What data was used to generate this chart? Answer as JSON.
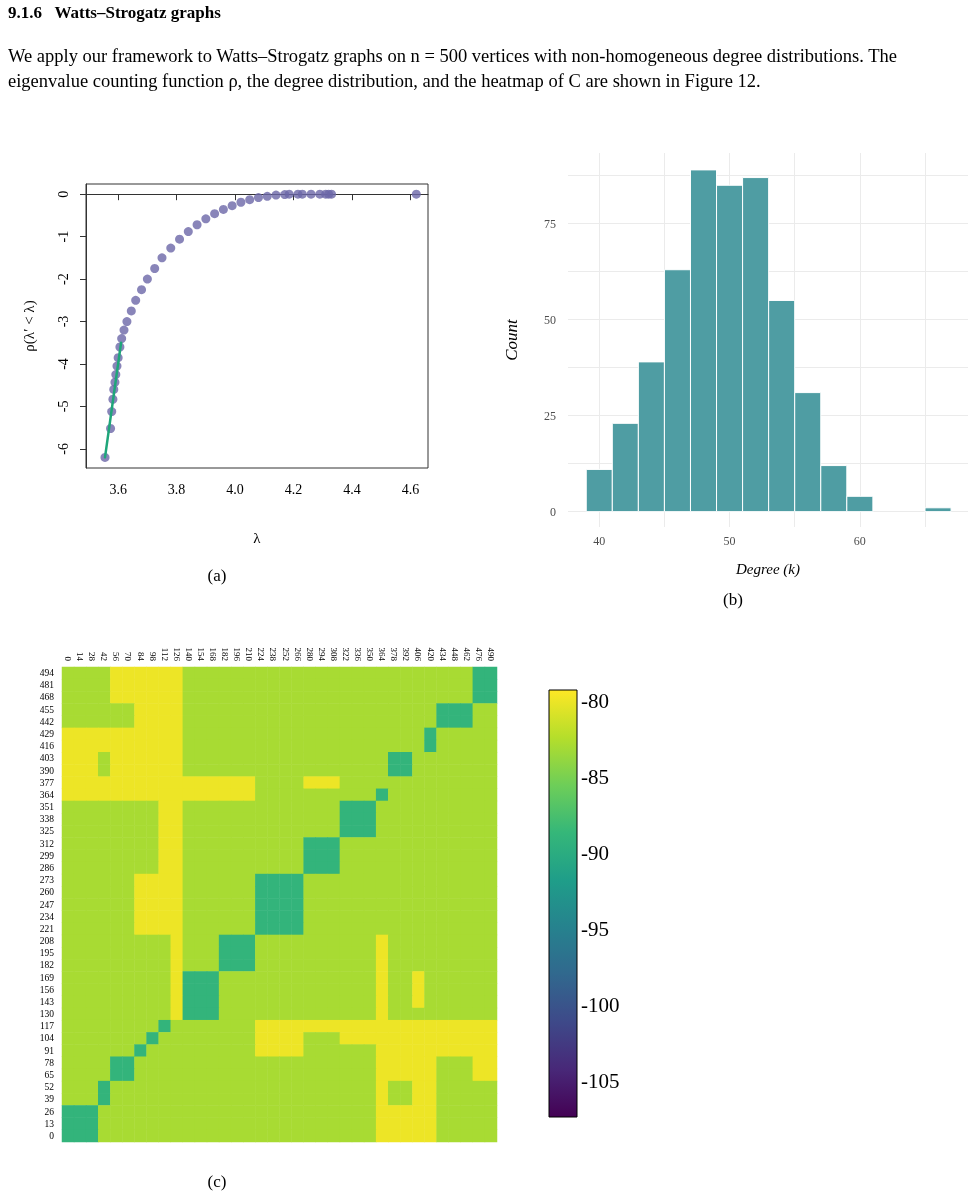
{
  "chart_data": [
    {
      "type": "scatter",
      "annotations": [
        "9.1.6   Watts–Strogatz graphs",
        "We apply our framework to Watts–Strogatz graphs on n = 500 vertices with non-homogeneous degree distributions. The eigenvalue counting function ρ, the degree distribution, and the heatmap of C are shown in Figure 12.",
        "(a)"
      ],
      "xlabel": "λ",
      "ylabel": "ρ(λ′ < λ)",
      "xlim": [
        3.49,
        4.66
      ],
      "ylim": [
        -6.45,
        0.24
      ],
      "xticks": [
        3.6,
        3.8,
        {
          "value": 4,
          "label": "4.0"
        },
        4.2,
        4.4,
        4.6
      ],
      "yticks": [
        0,
        -1,
        -2,
        -3,
        -4,
        -5,
        -6
      ],
      "marker": "circle",
      "series": [
        {
          "type": "scatter",
          "color": "#6b66a8",
          "x": [
            3.555,
            3.574,
            3.578,
            3.582,
            3.585,
            3.589,
            3.592,
            3.596,
            3.6,
            3.606,
            3.612,
            3.62,
            3.63,
            3.645,
            3.66,
            3.68,
            3.7,
            3.725,
            3.75,
            3.78,
            3.81,
            3.84,
            3.87,
            3.9,
            3.93,
            3.96,
            3.99,
            4.02,
            4.05,
            4.08,
            4.11,
            4.14,
            4.17,
            4.185,
            4.215,
            4.23,
            4.26,
            4.29,
            4.31,
            4.32,
            4.33,
            4.62
          ],
          "values": [
            -6.2,
            -5.52,
            -5.12,
            -4.83,
            -4.6,
            -4.43,
            -4.25,
            -4.05,
            -3.85,
            -3.6,
            -3.4,
            -3.2,
            -3.0,
            -2.75,
            -2.5,
            -2.25,
            -2.0,
            -1.75,
            -1.5,
            -1.27,
            -1.06,
            -0.88,
            -0.72,
            -0.58,
            -0.46,
            -0.36,
            -0.27,
            -0.19,
            -0.13,
            -0.08,
            -0.05,
            -0.02,
            -0.01,
            0,
            0,
            0,
            0,
            0,
            0,
            0,
            0,
            0
          ]
        },
        {
          "type": "line",
          "color": "#1fa67a",
          "marker": "none",
          "x": [
            3.555,
            3.61
          ],
          "values": [
            -6.2,
            -3.5
          ]
        }
      ]
    },
    {
      "type": "histogram",
      "annotations": [
        "(b)"
      ],
      "xlabel": "Degree (k)",
      "ylabel": "Count",
      "color": "#4f9da3",
      "bins": [
        39,
        41,
        43,
        45,
        47,
        49,
        51,
        53,
        55,
        57,
        59,
        61,
        63,
        65,
        67
      ],
      "values": [
        11,
        23,
        39,
        63,
        89,
        85,
        87,
        55,
        31,
        12,
        4,
        0,
        0,
        1
      ],
      "xlim": [
        37.6,
        68.3
      ],
      "ylim": [
        -4,
        93.4
      ],
      "xticks": [
        40,
        {
          "value": 45,
          "label": null
        },
        50,
        {
          "value": 55,
          "label": null
        },
        60,
        {
          "value": 65,
          "label": null
        }
      ],
      "yticks": [
        0,
        {
          "value": 12.5,
          "label": null
        },
        25,
        {
          "value": 37.5,
          "label": null
        },
        50,
        {
          "value": 62.5,
          "label": null
        },
        75,
        {
          "value": 87.5,
          "label": null
        }
      ],
      "grid": true
    },
    {
      "type": "heatmap",
      "annotations": [
        "(c)"
      ],
      "categories": [
        "0",
        "14",
        "28",
        "42",
        "56",
        "70",
        "84",
        "98",
        "112",
        "126",
        "140",
        "154",
        "168",
        "182",
        "196",
        "210",
        "224",
        "238",
        "252",
        "266",
        "280",
        "294",
        "308",
        "322",
        "336",
        "350",
        "364",
        "378",
        "392",
        "406",
        "420",
        "434",
        "448",
        "462",
        "476",
        "490"
      ],
      "y_categories": [
        "494",
        "481",
        "468",
        "455",
        "442",
        "429",
        "416",
        "403",
        "390",
        "377",
        "364",
        "351",
        "338",
        "325",
        "312",
        "299",
        "286",
        "273",
        "260",
        "247",
        "234",
        "221",
        "208",
        "195",
        "182",
        "169",
        "156",
        "143",
        "130",
        "117",
        "104",
        "91",
        "78",
        "65",
        "52",
        "39",
        "26",
        "13",
        "0"
      ],
      "clim": [
        -107.4,
        -79.3
      ],
      "cticks": [
        -80,
        -85,
        -90,
        -95,
        -100,
        -105
      ],
      "cells": [
        [
          -83,
          -83,
          -83,
          -83,
          -80,
          -80,
          -80,
          -80,
          -80,
          -80,
          -83,
          -83,
          -83,
          -83,
          -83,
          -83,
          -83,
          -83,
          -83,
          -83,
          -83,
          -83,
          -83,
          -83,
          -83,
          -83,
          -83,
          -83,
          -83,
          -83,
          -83,
          -83,
          -83,
          -83,
          -89,
          -89
        ],
        [
          -83,
          -83,
          -83,
          -83,
          -80,
          -80,
          -80,
          -80,
          -80,
          -80,
          -83,
          -83,
          -83,
          -83,
          -83,
          -83,
          -83,
          -83,
          -83,
          -83,
          -83,
          -83,
          -83,
          -83,
          -83,
          -83,
          -83,
          -83,
          -83,
          -83,
          -83,
          -83,
          -83,
          -83,
          -89,
          -89
        ],
        [
          -83,
          -83,
          -83,
          -83,
          -80,
          -80,
          -80,
          -80,
          -80,
          -80,
          -83,
          -83,
          -83,
          -83,
          -83,
          -83,
          -83,
          -83,
          -83,
          -83,
          -83,
          -83,
          -83,
          -83,
          -83,
          -83,
          -83,
          -83,
          -83,
          -83,
          -83,
          -83,
          -83,
          -83,
          -89,
          -89
        ],
        [
          -83,
          -83,
          -83,
          -83,
          -83,
          -83,
          -80,
          -80,
          -80,
          -80,
          -83,
          -83,
          -83,
          -83,
          -83,
          -83,
          -83,
          -83,
          -83,
          -83,
          -83,
          -83,
          -83,
          -83,
          -83,
          -83,
          -83,
          -83,
          -83,
          -83,
          -83,
          -89,
          -89,
          -89,
          -83,
          -83
        ],
        [
          -83,
          -83,
          -83,
          -83,
          -83,
          -83,
          -80,
          -80,
          -80,
          -80,
          -83,
          -83,
          -83,
          -83,
          -83,
          -83,
          -83,
          -83,
          -83,
          -83,
          -83,
          -83,
          -83,
          -83,
          -83,
          -83,
          -83,
          -83,
          -83,
          -83,
          -83,
          -89,
          -89,
          -89,
          -83,
          -83
        ],
        [
          -80,
          -80,
          -80,
          -80,
          -80,
          -80,
          -80,
          -80,
          -80,
          -80,
          -83,
          -83,
          -83,
          -83,
          -83,
          -83,
          -83,
          -83,
          -83,
          -83,
          -83,
          -83,
          -83,
          -83,
          -83,
          -83,
          -83,
          -83,
          -83,
          -83,
          -89,
          -83,
          -83,
          -83,
          -83,
          -83
        ],
        [
          -80,
          -80,
          -80,
          -80,
          -80,
          -80,
          -80,
          -80,
          -80,
          -80,
          -83,
          -83,
          -83,
          -83,
          -83,
          -83,
          -83,
          -83,
          -83,
          -83,
          -83,
          -83,
          -83,
          -83,
          -83,
          -83,
          -83,
          -83,
          -83,
          -83,
          -89,
          -83,
          -83,
          -83,
          -83,
          -83
        ],
        [
          -80,
          -80,
          -80,
          -83,
          -80,
          -80,
          -80,
          -80,
          -80,
          -80,
          -83,
          -83,
          -83,
          -83,
          -83,
          -83,
          -83,
          -83,
          -83,
          -83,
          -83,
          -83,
          -83,
          -83,
          -83,
          -83,
          -83,
          -89,
          -89,
          -83,
          -83,
          -83,
          -83,
          -83,
          -83,
          -83
        ],
        [
          -80,
          -80,
          -80,
          -83,
          -80,
          -80,
          -80,
          -80,
          -80,
          -80,
          -83,
          -83,
          -83,
          -83,
          -83,
          -83,
          -83,
          -83,
          -83,
          -83,
          -83,
          -83,
          -83,
          -83,
          -83,
          -83,
          -83,
          -89,
          -89,
          -83,
          -83,
          -83,
          -83,
          -83,
          -83,
          -83
        ],
        [
          -80,
          -80,
          -80,
          -80,
          -80,
          -80,
          -80,
          -80,
          -80,
          -80,
          -80,
          -80,
          -80,
          -80,
          -80,
          -80,
          -83,
          -83,
          -83,
          -83,
          -80,
          -80,
          -80,
          -83,
          -83,
          -83,
          -83,
          -83,
          -83,
          -83,
          -83,
          -83,
          -83,
          -83,
          -83,
          -83
        ],
        [
          -80,
          -80,
          -80,
          -80,
          -80,
          -80,
          -80,
          -80,
          -80,
          -80,
          -80,
          -80,
          -80,
          -80,
          -80,
          -80,
          -83,
          -83,
          -83,
          -83,
          -83,
          -83,
          -83,
          -83,
          -83,
          -83,
          -89,
          -83,
          -83,
          -83,
          -83,
          -83,
          -83,
          -83,
          -83,
          -83
        ],
        [
          -83,
          -83,
          -83,
          -83,
          -83,
          -83,
          -83,
          -83,
          -80,
          -80,
          -83,
          -83,
          -83,
          -83,
          -83,
          -83,
          -83,
          -83,
          -83,
          -83,
          -83,
          -83,
          -83,
          -89,
          -89,
          -89,
          -83,
          -83,
          -83,
          -83,
          -83,
          -83,
          -83,
          -83,
          -83,
          -83
        ],
        [
          -83,
          -83,
          -83,
          -83,
          -83,
          -83,
          -83,
          -83,
          -80,
          -80,
          -83,
          -83,
          -83,
          -83,
          -83,
          -83,
          -83,
          -83,
          -83,
          -83,
          -83,
          -83,
          -83,
          -89,
          -89,
          -89,
          -83,
          -83,
          -83,
          -83,
          -83,
          -83,
          -83,
          -83,
          -83,
          -83
        ],
        [
          -83,
          -83,
          -83,
          -83,
          -83,
          -83,
          -83,
          -83,
          -80,
          -80,
          -83,
          -83,
          -83,
          -83,
          -83,
          -83,
          -83,
          -83,
          -83,
          -83,
          -83,
          -83,
          -83,
          -89,
          -89,
          -89,
          -83,
          -83,
          -83,
          -83,
          -83,
          -83,
          -83,
          -83,
          -83,
          -83
        ],
        [
          -83,
          -83,
          -83,
          -83,
          -83,
          -83,
          -83,
          -83,
          -80,
          -80,
          -83,
          -83,
          -83,
          -83,
          -83,
          -83,
          -83,
          -83,
          -83,
          -83,
          -89,
          -89,
          -89,
          -83,
          -83,
          -83,
          -83,
          -83,
          -83,
          -83,
          -83,
          -83,
          -83,
          -83,
          -83,
          -83
        ],
        [
          -83,
          -83,
          -83,
          -83,
          -83,
          -83,
          -83,
          -83,
          -80,
          -80,
          -83,
          -83,
          -83,
          -83,
          -83,
          -83,
          -83,
          -83,
          -83,
          -83,
          -89,
          -89,
          -89,
          -83,
          -83,
          -83,
          -83,
          -83,
          -83,
          -83,
          -83,
          -83,
          -83,
          -83,
          -83,
          -83
        ],
        [
          -83,
          -83,
          -83,
          -83,
          -83,
          -83,
          -83,
          -83,
          -80,
          -80,
          -83,
          -83,
          -83,
          -83,
          -83,
          -83,
          -83,
          -83,
          -83,
          -83,
          -89,
          -89,
          -89,
          -83,
          -83,
          -83,
          -83,
          -83,
          -83,
          -83,
          -83,
          -83,
          -83,
          -83,
          -83,
          -83
        ],
        [
          -83,
          -83,
          -83,
          -83,
          -83,
          -83,
          -80,
          -80,
          -80,
          -80,
          -83,
          -83,
          -83,
          -83,
          -83,
          -83,
          -89,
          -89,
          -89,
          -89,
          -83,
          -83,
          -83,
          -83,
          -83,
          -83,
          -83,
          -83,
          -83,
          -83,
          -83,
          -83,
          -83,
          -83,
          -83,
          -83
        ],
        [
          -83,
          -83,
          -83,
          -83,
          -83,
          -83,
          -80,
          -80,
          -80,
          -80,
          -83,
          -83,
          -83,
          -83,
          -83,
          -83,
          -89,
          -89,
          -89,
          -89,
          -83,
          -83,
          -83,
          -83,
          -83,
          -83,
          -83,
          -83,
          -83,
          -83,
          -83,
          -83,
          -83,
          -83,
          -83,
          -83
        ],
        [
          -83,
          -83,
          -83,
          -83,
          -83,
          -83,
          -80,
          -80,
          -80,
          -80,
          -83,
          -83,
          -83,
          -83,
          -83,
          -83,
          -89,
          -89,
          -89,
          -89,
          -83,
          -83,
          -83,
          -83,
          -83,
          -83,
          -83,
          -83,
          -83,
          -83,
          -83,
          -83,
          -83,
          -83,
          -83,
          -83
        ],
        [
          -83,
          -83,
          -83,
          -83,
          -83,
          -83,
          -80,
          -80,
          -80,
          -80,
          -83,
          -83,
          -83,
          -83,
          -83,
          -83,
          -89,
          -89,
          -89,
          -89,
          -83,
          -83,
          -83,
          -83,
          -83,
          -83,
          -83,
          -83,
          -83,
          -83,
          -83,
          -83,
          -83,
          -83,
          -83,
          -83
        ],
        [
          -83,
          -83,
          -83,
          -83,
          -83,
          -83,
          -80,
          -80,
          -80,
          -80,
          -83,
          -83,
          -83,
          -83,
          -83,
          -83,
          -89,
          -89,
          -89,
          -89,
          -83,
          -83,
          -83,
          -83,
          -83,
          -83,
          -83,
          -83,
          -83,
          -83,
          -83,
          -83,
          -83,
          -83,
          -83,
          -83
        ],
        [
          -83,
          -83,
          -83,
          -83,
          -83,
          -83,
          -83,
          -83,
          -83,
          -80,
          -83,
          -83,
          -83,
          -89,
          -89,
          -89,
          -83,
          -83,
          -83,
          -83,
          -83,
          -83,
          -83,
          -83,
          -83,
          -83,
          -80,
          -83,
          -83,
          -83,
          -83,
          -83,
          -83,
          -83,
          -83,
          -83
        ],
        [
          -83,
          -83,
          -83,
          -83,
          -83,
          -83,
          -83,
          -83,
          -83,
          -80,
          -83,
          -83,
          -83,
          -89,
          -89,
          -89,
          -83,
          -83,
          -83,
          -83,
          -83,
          -83,
          -83,
          -83,
          -83,
          -83,
          -80,
          -83,
          -83,
          -83,
          -83,
          -83,
          -83,
          -83,
          -83,
          -83
        ],
        [
          -83,
          -83,
          -83,
          -83,
          -83,
          -83,
          -83,
          -83,
          -83,
          -80,
          -83,
          -83,
          -83,
          -89,
          -89,
          -89,
          -83,
          -83,
          -83,
          -83,
          -83,
          -83,
          -83,
          -83,
          -83,
          -83,
          -80,
          -83,
          -83,
          -83,
          -83,
          -83,
          -83,
          -83,
          -83,
          -83
        ],
        [
          -83,
          -83,
          -83,
          -83,
          -83,
          -83,
          -83,
          -83,
          -83,
          -80,
          -89,
          -89,
          -89,
          -83,
          -83,
          -83,
          -83,
          -83,
          -83,
          -83,
          -83,
          -83,
          -83,
          -83,
          -83,
          -83,
          -80,
          -83,
          -83,
          -80,
          -83,
          -83,
          -83,
          -83,
          -83,
          -83
        ],
        [
          -83,
          -83,
          -83,
          -83,
          -83,
          -83,
          -83,
          -83,
          -83,
          -80,
          -89,
          -89,
          -89,
          -83,
          -83,
          -83,
          -83,
          -83,
          -83,
          -83,
          -83,
          -83,
          -83,
          -83,
          -83,
          -83,
          -80,
          -83,
          -83,
          -80,
          -83,
          -83,
          -83,
          -83,
          -83,
          -83
        ],
        [
          -83,
          -83,
          -83,
          -83,
          -83,
          -83,
          -83,
          -83,
          -83,
          -80,
          -89,
          -89,
          -89,
          -83,
          -83,
          -83,
          -83,
          -83,
          -83,
          -83,
          -83,
          -83,
          -83,
          -83,
          -83,
          -83,
          -80,
          -83,
          -83,
          -80,
          -83,
          -83,
          -83,
          -83,
          -83,
          -83
        ],
        [
          -83,
          -83,
          -83,
          -83,
          -83,
          -83,
          -83,
          -83,
          -83,
          -80,
          -89,
          -89,
          -89,
          -83,
          -83,
          -83,
          -83,
          -83,
          -83,
          -83,
          -83,
          -83,
          -83,
          -83,
          -83,
          -83,
          -80,
          -83,
          -83,
          -83,
          -83,
          -83,
          -83,
          -83,
          -83,
          -83
        ],
        [
          -83,
          -83,
          -83,
          -83,
          -83,
          -83,
          -83,
          -83,
          -89,
          -83,
          -83,
          -83,
          -83,
          -83,
          -83,
          -83,
          -80,
          -80,
          -80,
          -80,
          -80,
          -80,
          -80,
          -80,
          -80,
          -80,
          -80,
          -80,
          -80,
          -80,
          -80,
          -80,
          -80,
          -80,
          -80,
          -80
        ],
        [
          -83,
          -83,
          -83,
          -83,
          -83,
          -83,
          -83,
          -89,
          -83,
          -83,
          -83,
          -83,
          -83,
          -83,
          -83,
          -83,
          -80,
          -80,
          -80,
          -80,
          -83,
          -83,
          -83,
          -80,
          -80,
          -80,
          -80,
          -80,
          -80,
          -80,
          -80,
          -80,
          -80,
          -80,
          -80,
          -80
        ],
        [
          -83,
          -83,
          -83,
          -83,
          -83,
          -83,
          -89,
          -83,
          -83,
          -83,
          -83,
          -83,
          -83,
          -83,
          -83,
          -83,
          -80,
          -80,
          -80,
          -80,
          -83,
          -83,
          -83,
          -83,
          -83,
          -83,
          -80,
          -80,
          -80,
          -80,
          -80,
          -80,
          -80,
          -80,
          -80,
          -80
        ],
        [
          -83,
          -83,
          -83,
          -83,
          -89,
          -89,
          -83,
          -83,
          -83,
          -83,
          -83,
          -83,
          -83,
          -83,
          -83,
          -83,
          -83,
          -83,
          -83,
          -83,
          -83,
          -83,
          -83,
          -83,
          -83,
          -83,
          -80,
          -80,
          -80,
          -80,
          -80,
          -83,
          -83,
          -83,
          -80,
          -80
        ],
        [
          -83,
          -83,
          -83,
          -83,
          -89,
          -89,
          -83,
          -83,
          -83,
          -83,
          -83,
          -83,
          -83,
          -83,
          -83,
          -83,
          -83,
          -83,
          -83,
          -83,
          -83,
          -83,
          -83,
          -83,
          -83,
          -83,
          -80,
          -80,
          -80,
          -80,
          -80,
          -83,
          -83,
          -83,
          -80,
          -80
        ],
        [
          -83,
          -83,
          -83,
          -89,
          -83,
          -83,
          -83,
          -83,
          -83,
          -83,
          -83,
          -83,
          -83,
          -83,
          -83,
          -83,
          -83,
          -83,
          -83,
          -83,
          -83,
          -83,
          -83,
          -83,
          -83,
          -83,
          -80,
          -83,
          -83,
          -80,
          -80,
          -83,
          -83,
          -83,
          -83,
          -83
        ],
        [
          -83,
          -83,
          -83,
          -89,
          -83,
          -83,
          -83,
          -83,
          -83,
          -83,
          -83,
          -83,
          -83,
          -83,
          -83,
          -83,
          -83,
          -83,
          -83,
          -83,
          -83,
          -83,
          -83,
          -83,
          -83,
          -83,
          -80,
          -83,
          -83,
          -80,
          -80,
          -83,
          -83,
          -83,
          -83,
          -83
        ],
        [
          -89,
          -89,
          -89,
          -83,
          -83,
          -83,
          -83,
          -83,
          -83,
          -83,
          -83,
          -83,
          -83,
          -83,
          -83,
          -83,
          -83,
          -83,
          -83,
          -83,
          -83,
          -83,
          -83,
          -83,
          -83,
          -83,
          -80,
          -80,
          -80,
          -80,
          -80,
          -83,
          -83,
          -83,
          -83,
          -83
        ],
        [
          -89,
          -89,
          -89,
          -83,
          -83,
          -83,
          -83,
          -83,
          -83,
          -83,
          -83,
          -83,
          -83,
          -83,
          -83,
          -83,
          -83,
          -83,
          -83,
          -83,
          -83,
          -83,
          -83,
          -83,
          -83,
          -83,
          -80,
          -80,
          -80,
          -80,
          -80,
          -83,
          -83,
          -83,
          -83,
          -83
        ],
        [
          -89,
          -89,
          -89,
          -83,
          -83,
          -83,
          -83,
          -83,
          -83,
          -83,
          -83,
          -83,
          -83,
          -83,
          -83,
          -83,
          -83,
          -83,
          -83,
          -83,
          -83,
          -83,
          -83,
          -83,
          -83,
          -83,
          -80,
          -80,
          -80,
          -80,
          -80,
          -83,
          -83,
          -83,
          -83,
          -83
        ]
      ]
    }
  ]
}
